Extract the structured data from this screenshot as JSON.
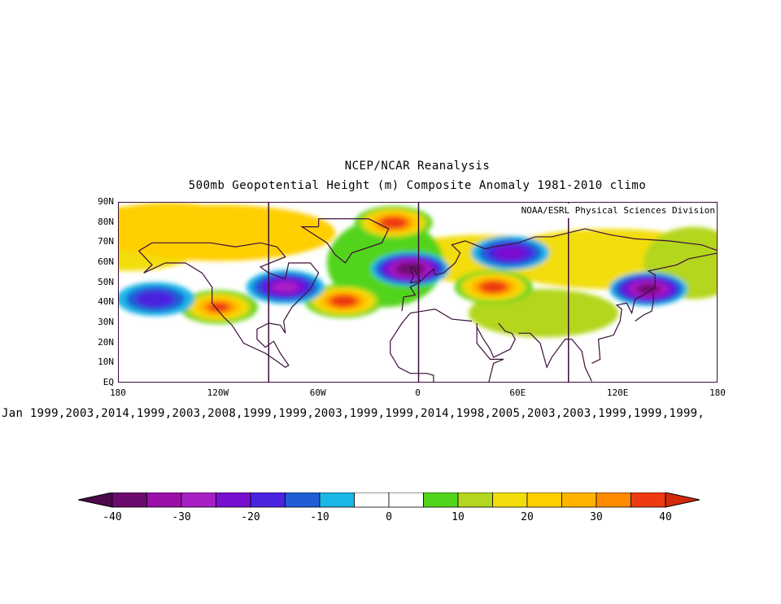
{
  "title": {
    "line1": "NCEP/NCAR Reanalysis",
    "line2": "500mb Geopotential Height (m) Composite Anomaly 1981-2010 climo"
  },
  "credit": "NOAA/ESRL Physical Sciences Division",
  "years_text": "Jan 1999,2003,2014,1999,2003,2008,1999,1999,2003,1999,1999,2014,1998,2005,2003,2003,1999,1999,1999,",
  "map": {
    "projection": "cylindrical equidistant",
    "lon_range": [
      -180,
      180
    ],
    "lat_range": [
      0,
      90
    ],
    "lat_labels": [
      "90N",
      "80N",
      "70N",
      "60N",
      "50N",
      "40N",
      "30N",
      "20N",
      "10N",
      "EQ"
    ],
    "lon_labels": [
      "180",
      "120W",
      "60W",
      "0",
      "60E",
      "120E",
      "180"
    ],
    "meridian_lines_lon": [
      -90,
      0,
      90
    ],
    "line_color": "#3b0f3b",
    "anomaly_centers": [
      {
        "region": "Arctic north of Greenland/Europe",
        "lon": -15,
        "lat": 80,
        "value": 40
      },
      {
        "region": "Western North America",
        "lon": -120,
        "lat": 38,
        "value": 35
      },
      {
        "region": "Central North Atlantic",
        "lon": -45,
        "lat": 41,
        "value": 40
      },
      {
        "region": "Eastern Europe / Caspian",
        "lon": 45,
        "lat": 48,
        "value": 40
      },
      {
        "region": "North Atlantic / Northern Europe",
        "lon": -5,
        "lat": 57,
        "value": -40
      },
      {
        "region": "Northeast North America",
        "lon": -80,
        "lat": 48,
        "value": -25
      },
      {
        "region": "Northeast Asia / Japan",
        "lon": 138,
        "lat": 47,
        "value": -35
      },
      {
        "region": "Northeast Pacific",
        "lon": -158,
        "lat": 42,
        "value": -15
      },
      {
        "region": "Western Siberia",
        "lon": 55,
        "lat": 65,
        "value": -20
      }
    ]
  },
  "colorbar": {
    "labels": [
      "-40",
      "-30",
      "-20",
      "-10",
      "0",
      "10",
      "20",
      "30",
      "40"
    ],
    "colors": [
      "#6d0a6d",
      "#9a10a8",
      "#a81fc4",
      "#7810cf",
      "#4a24e0",
      "#1f5ed6",
      "#1ab6e6",
      "#ffffff",
      "#ffffff",
      "#52d41a",
      "#b4d61e",
      "#f2dd0a",
      "#ffcf00",
      "#ffb300",
      "#ff8a00",
      "#ee3a10"
    ],
    "left_arrow_color": "#4b0a4b",
    "right_arrow_color": "#d22a0a"
  }
}
